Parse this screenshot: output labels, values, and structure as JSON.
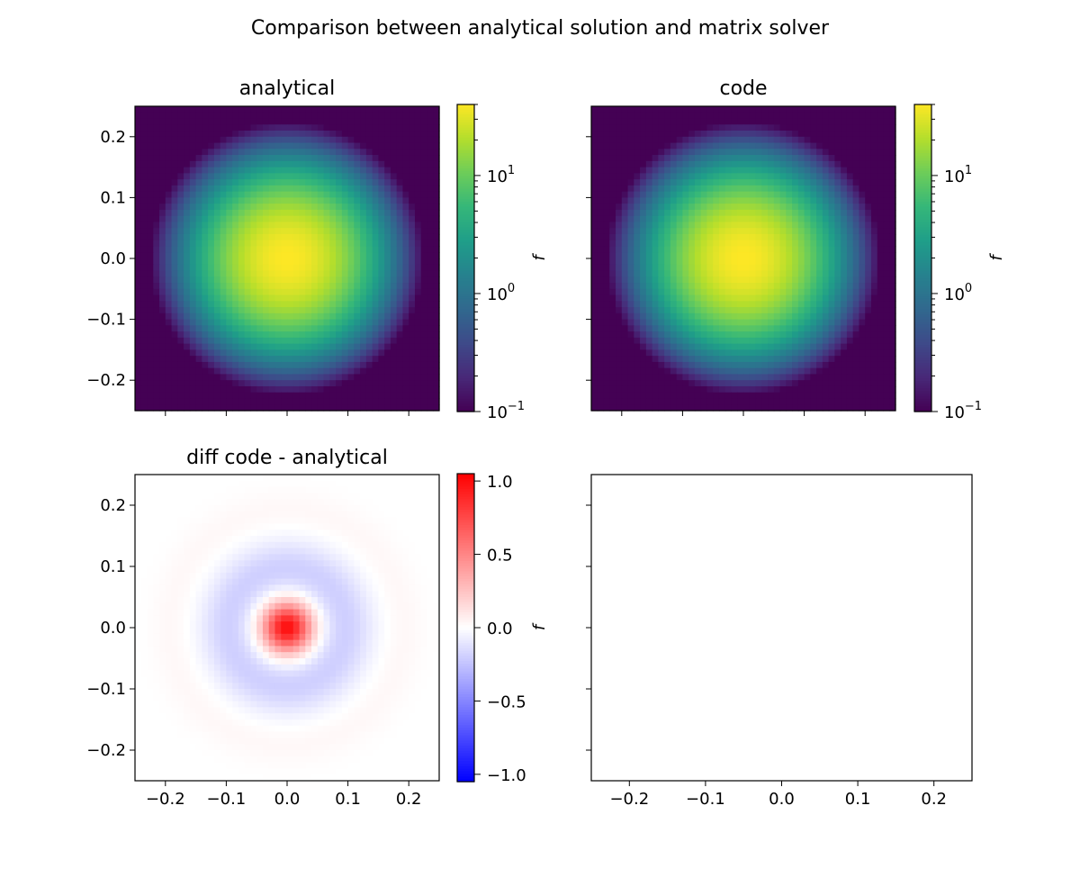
{
  "chart_data": {
    "title": "Comparison between analytical solution and matrix solver",
    "panels": [
      {
        "id": "analytical",
        "type": "heatmap",
        "title": "analytical",
        "colormap": "viridis",
        "scale": "log",
        "xlim": [
          -0.25,
          0.25
        ],
        "ylim": [
          -0.25,
          0.25
        ],
        "xticks": [
          -0.2,
          -0.1,
          0.0,
          0.1,
          0.2
        ],
        "yticks": [
          -0.2,
          -0.1,
          0.0,
          0.1,
          0.2
        ],
        "xticklabels": [],
        "yticklabels": [
          "0.2",
          "0.1",
          "0.0",
          "−0.1",
          "−0.2"
        ],
        "grid_size": 50,
        "peak_value": 40,
        "peak_center": [
          0.0,
          0.0
        ],
        "colorbar": {
          "label": "f",
          "vmin": 0.1,
          "vmax": 40,
          "ticks": [
            {
              "value": 10,
              "base": "10",
              "exp": "1"
            },
            {
              "value": 1,
              "base": "10",
              "exp": "0"
            },
            {
              "value": 0.1,
              "base": "10",
              "exp": "−1"
            }
          ]
        }
      },
      {
        "id": "code",
        "type": "heatmap",
        "title": "code",
        "colormap": "viridis",
        "scale": "log",
        "xlim": [
          -0.25,
          0.25
        ],
        "ylim": [
          -0.25,
          0.25
        ],
        "xticks": [
          -0.2,
          -0.1,
          0.0,
          0.1,
          0.2
        ],
        "yticks": [
          -0.2,
          -0.1,
          0.0,
          0.1,
          0.2
        ],
        "xticklabels": [],
        "yticklabels": [],
        "grid_size": 50,
        "peak_value": 40,
        "peak_center": [
          0.0,
          0.0
        ],
        "colorbar": {
          "label": "f",
          "vmin": 0.1,
          "vmax": 40,
          "ticks": [
            {
              "value": 10,
              "base": "10",
              "exp": "1"
            },
            {
              "value": 1,
              "base": "10",
              "exp": "0"
            },
            {
              "value": 0.1,
              "base": "10",
              "exp": "−1"
            }
          ]
        }
      },
      {
        "id": "diff",
        "type": "heatmap",
        "title": "diff code - analytical",
        "colormap": "bwr",
        "scale": "linear",
        "xlim": [
          -0.25,
          0.25
        ],
        "ylim": [
          -0.25,
          0.25
        ],
        "xticks": [
          -0.2,
          -0.1,
          0.0,
          0.1,
          0.2
        ],
        "yticks": [
          -0.2,
          -0.1,
          0.0,
          0.1,
          0.2
        ],
        "xticklabels": [
          "−0.2",
          "−0.1",
          "0.0",
          "0.1",
          "0.2"
        ],
        "yticklabels": [
          "0.2",
          "0.1",
          "0.0",
          "−0.1",
          "−0.2"
        ],
        "grid_size": 50,
        "center_value": 1.0,
        "negative_ring_value": -0.2,
        "outer_ring_value": 0.03,
        "colorbar": {
          "label": "f",
          "vmin": -1.05,
          "vmax": 1.05,
          "ticks": [
            {
              "value": 1.0,
              "text": "1.0"
            },
            {
              "value": 0.5,
              "text": "0.5"
            },
            {
              "value": 0.0,
              "text": "0.0"
            },
            {
              "value": -0.5,
              "text": "−0.5"
            },
            {
              "value": -1.0,
              "text": "−1.0"
            }
          ]
        }
      },
      {
        "id": "empty",
        "type": "empty",
        "title": "",
        "xlim": [
          -0.25,
          0.25
        ],
        "ylim": [
          -0.25,
          0.25
        ],
        "xticks": [
          -0.2,
          -0.1,
          0.0,
          0.1,
          0.2
        ],
        "yticks": [
          -0.2,
          -0.1,
          0.0,
          0.1,
          0.2
        ],
        "xticklabels": [
          "−0.2",
          "−0.1",
          "0.0",
          "0.1",
          "0.2"
        ],
        "yticklabels": []
      }
    ]
  }
}
